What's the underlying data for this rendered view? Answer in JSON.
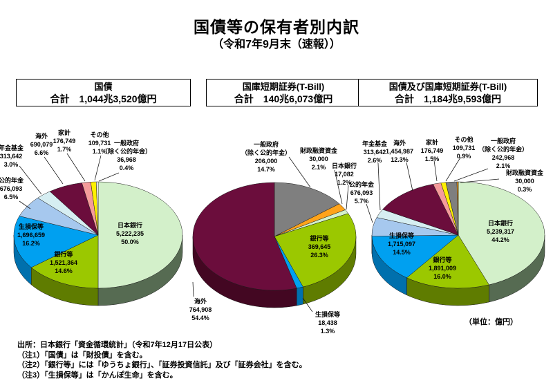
{
  "page": {
    "title": "国債等の保有者別内訳",
    "subtitle": "（令和7年9月末（速報））",
    "unit_note": "（単位：億円）",
    "source": "出所：日本銀行「資金循環統計」（令和7年12月17日公表）",
    "notes": [
      "（注1）「国債」は「財投債」を含む。",
      "（注2）「銀行等」には「ゆうちょ銀行」、「証券投資信託」及び「証券会社」を含む。",
      "（注3）「生損保等」は「かんぽ生命」を含む。"
    ]
  },
  "chart_data": [
    {
      "type": "pie",
      "title": "国債",
      "total_label": "合計　1,044兆3,520億円",
      "total_value": 10443520,
      "unit": "億円",
      "slices": [
        {
          "n": "日本銀行",
          "s": "",
          "v": "5,222,235",
          "p": "50.0%",
          "value": 5222235,
          "color": "#d3f0ca",
          "side": "#566b52"
        },
        {
          "n": "銀行等",
          "s": "",
          "v": "1,521,364",
          "p": "14.6%",
          "value": 1521364,
          "color": "#9bc800",
          "side": "#5f7c00"
        },
        {
          "n": "生損保等",
          "s": "",
          "v": "1,696,659",
          "p": "16.2%",
          "value": 1696659,
          "color": "#00a0f0",
          "side": "#0070ad"
        },
        {
          "n": "公的年金",
          "s": "",
          "v": "676,093",
          "p": "6.5%",
          "value": 676093,
          "color": "#a6c8ee",
          "side": "#7491b5"
        },
        {
          "n": "年金基金",
          "s": "",
          "v": "313,642",
          "p": "3.0%",
          "value": 313642,
          "color": "#d6eef2",
          "side": "#97afb6"
        },
        {
          "n": "海外",
          "s": "",
          "v": "690,079",
          "p": "6.6%",
          "value": 690079,
          "color": "#6b0d3c",
          "side": "#430722"
        },
        {
          "n": "家計",
          "s": "",
          "v": "176,749",
          "p": "1.7%",
          "value": 176749,
          "color": "#f59b9b",
          "side": "#ba6f6f"
        },
        {
          "n": "その他",
          "s": "",
          "v": "109,731",
          "p": "1.1%",
          "value": 109731,
          "color": "#fff000",
          "side": "#b8ad00"
        },
        {
          "n": "一般政府",
          "s": "（除く公的年金）",
          "v": "36,968",
          "p": "0.4%",
          "value": 36968,
          "color": "#ffffff",
          "side": "#c8c8c8"
        }
      ]
    },
    {
      "type": "pie",
      "title": "国庫短期証券(T-Bill)",
      "total_label": "合計　140兆6,073億円",
      "total_value": 1406073,
      "unit": "億円",
      "slices": [
        {
          "n": "一般政府",
          "s": "（除く公的年金）",
          "v": "206,000",
          "p": "14.7%",
          "value": 206000,
          "color": "#7f7f7f",
          "side": "#545454"
        },
        {
          "n": "財政融資資金",
          "s": "",
          "v": "30,000",
          "p": "2.1%",
          "value": 30000,
          "color": "#ffa31a",
          "side": "#ba7400"
        },
        {
          "n": "日本銀行",
          "s": "",
          "v": "17,082",
          "p": "1.2%",
          "value": 17082,
          "color": "#d3f0ca",
          "side": "#566b52"
        },
        {
          "n": "銀行等",
          "s": "",
          "v": "369,645",
          "p": "26.3%",
          "value": 369645,
          "color": "#9bc800",
          "side": "#5f7c00"
        },
        {
          "n": "生損保等",
          "s": "",
          "v": "18,438",
          "p": "1.3%",
          "value": 18438,
          "color": "#00a0f0",
          "side": "#0070ad"
        },
        {
          "n": "海外",
          "s": "",
          "v": "764,908",
          "p": "54.4%",
          "value": 764908,
          "color": "#6b0d3c",
          "side": "#430722"
        }
      ]
    },
    {
      "type": "pie",
      "title": "国債及び国庫短期証券(T-Bill)",
      "total_label": "合計　1,184兆9,593億円",
      "total_value": 11849593,
      "unit": "億円",
      "slices": [
        {
          "n": "日本銀行",
          "s": "",
          "v": "5,239,317",
          "p": "44.2%",
          "value": 5239317,
          "color": "#d3f0ca",
          "side": "#566b52"
        },
        {
          "n": "銀行等",
          "s": "",
          "v": "1,891,009",
          "p": "16.0%",
          "value": 1891009,
          "color": "#9bc800",
          "side": "#5f7c00"
        },
        {
          "n": "生損保等",
          "s": "",
          "v": "1,715,097",
          "p": "14.5%",
          "value": 1715097,
          "color": "#00a0f0",
          "side": "#0070ad"
        },
        {
          "n": "公的年金",
          "s": "",
          "v": "676,093",
          "p": "5.7%",
          "value": 676093,
          "color": "#a6c8ee",
          "side": "#7491b5"
        },
        {
          "n": "年金基金",
          "s": "",
          "v": "313,642",
          "p": "2.6%",
          "value": 313642,
          "color": "#d6eef2",
          "side": "#97afb6"
        },
        {
          "n": "海外",
          "s": "",
          "v": "1,454,987",
          "p": "12.3%",
          "value": 1454987,
          "color": "#6b0d3c",
          "side": "#430722"
        },
        {
          "n": "家計",
          "s": "",
          "v": "176,749",
          "p": "1.5%",
          "value": 176749,
          "color": "#f59b9b",
          "side": "#ba6f6f"
        },
        {
          "n": "その他",
          "s": "",
          "v": "109,731",
          "p": "0.9%",
          "value": 109731,
          "color": "#fff000",
          "side": "#b8ad00"
        },
        {
          "n": "一般政府",
          "s": "（除く公的年金）",
          "v": "242,968",
          "p": "2.1%",
          "value": 242968,
          "color": "#7f7f7f",
          "side": "#545454"
        },
        {
          "n": "財政融資資金",
          "s": "",
          "v": "30,000",
          "p": "0.3%",
          "value": 30000,
          "color": "#ffa31a",
          "side": "#ba7400"
        }
      ]
    }
  ]
}
